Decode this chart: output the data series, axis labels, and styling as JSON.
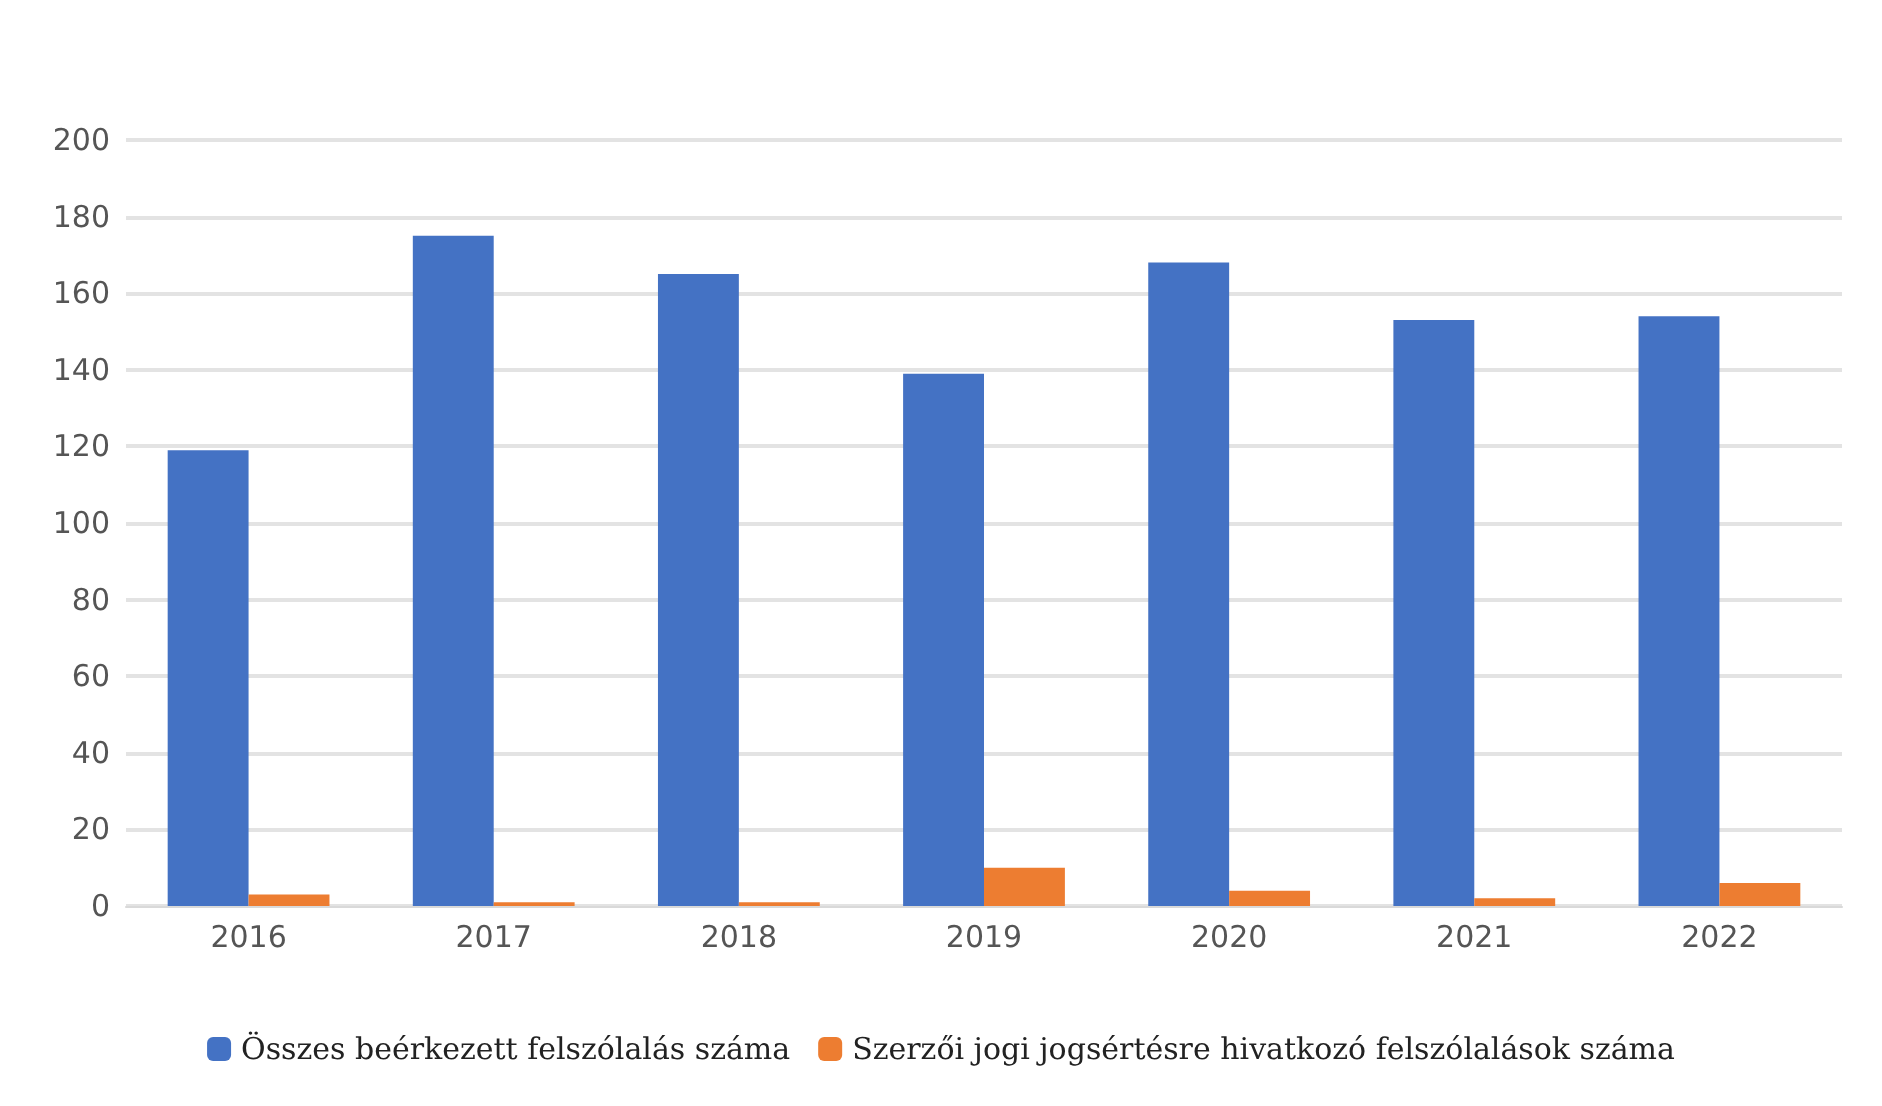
{
  "chart_data": {
    "type": "bar",
    "categories": [
      "2016",
      "2017",
      "2018",
      "2019",
      "2020",
      "2021",
      "2022"
    ],
    "series": [
      {
        "name": "Összes beérkezett felszólalás száma",
        "color": "#4472c4",
        "values": [
          119,
          175,
          165,
          139,
          168,
          153,
          154
        ]
      },
      {
        "name": "Szerzői jogi jogsértésre hivatkozó felszólalások száma",
        "color": "#ed7d31",
        "values": [
          3,
          1,
          1,
          10,
          4,
          2,
          6
        ]
      }
    ],
    "ylim": [
      0,
      200
    ],
    "yticks": [
      0,
      20,
      40,
      60,
      80,
      100,
      120,
      140,
      160,
      180,
      200
    ],
    "grid": "y",
    "legend": "bottom"
  }
}
